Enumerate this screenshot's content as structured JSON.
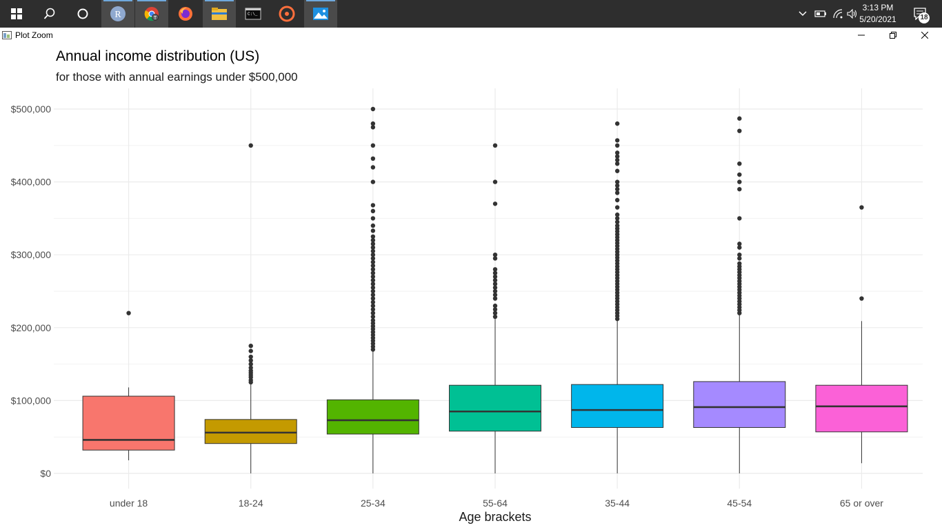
{
  "taskbar": {
    "icons": [
      "windows-start-icon",
      "search-icon",
      "cortana-icon",
      "r-app-icon",
      "chrome-icon",
      "firefox-icon",
      "file-explorer-icon",
      "terminal-icon",
      "media-player-icon",
      "photos-icon"
    ],
    "tray": {
      "time": "3:13 PM",
      "date": "5/20/2021",
      "notifications": "18"
    }
  },
  "window": {
    "title": "Plot Zoom"
  },
  "chart_data": {
    "type": "box",
    "title": "Annual income distribution (US)",
    "subtitle": "for those with annual earnings under $500,000",
    "xlabel": "Age brackets",
    "ylabel": "",
    "ylim": [
      -20000,
      530000
    ],
    "yticks": [
      0,
      100000,
      200000,
      300000,
      400000,
      500000
    ],
    "ytick_labels": [
      "$0",
      "$100,000",
      "$200,000",
      "$300,000",
      "$400,000",
      "$500,000"
    ],
    "grid": true,
    "colors": {
      "median": "#333333",
      "outlier": "#333333",
      "grid": "#ebebeb"
    },
    "categories": [
      "under 18",
      "18-24",
      "25-34",
      "55-64",
      "35-44",
      "45-54",
      "65 or over"
    ],
    "boxes": [
      {
        "name": "under 18",
        "color": "#F8766D",
        "whisker_low": 18000,
        "q1": 32000,
        "median": 46000,
        "q3": 106000,
        "whisker_high": 118000,
        "outliers": [
          220000
        ]
      },
      {
        "name": "18-24",
        "color": "#C49A00",
        "whisker_low": 0,
        "q1": 41000,
        "median": 56000,
        "q3": 74000,
        "whisker_high": 122000,
        "outliers": [
          125000,
          128000,
          132000,
          135000,
          138000,
          141000,
          145000,
          150000,
          155000,
          160000,
          168000,
          175000,
          450000
        ]
      },
      {
        "name": "25-34",
        "color": "#53B400",
        "whisker_low": 0,
        "q1": 54000,
        "median": 73000,
        "q3": 101000,
        "whisker_high": 168000,
        "outliers": [
          170000,
          174000,
          178000,
          182000,
          186000,
          190000,
          194000,
          198000,
          202000,
          206000,
          210000,
          215000,
          220000,
          225000,
          230000,
          235000,
          240000,
          245000,
          250000,
          255000,
          260000,
          265000,
          270000,
          275000,
          280000,
          285000,
          290000,
          295000,
          300000,
          305000,
          310000,
          315000,
          320000,
          325000,
          333000,
          340000,
          350000,
          360000,
          368000,
          400000,
          420000,
          432000,
          450000,
          475000,
          480000,
          500000
        ]
      },
      {
        "name": "55-64",
        "color": "#00C094",
        "whisker_low": 0,
        "q1": 58000,
        "median": 85000,
        "q3": 121000,
        "whisker_high": 212000,
        "outliers": [
          215000,
          220000,
          225000,
          230000,
          240000,
          245000,
          250000,
          255000,
          260000,
          265000,
          270000,
          275000,
          280000,
          295000,
          300000,
          370000,
          400000,
          450000
        ]
      },
      {
        "name": "35-44",
        "color": "#00B6EB",
        "whisker_low": 0,
        "q1": 63000,
        "median": 87000,
        "q3": 122000,
        "whisker_high": 210000,
        "outliers": [
          212000,
          216000,
          220000,
          224000,
          228000,
          232000,
          236000,
          240000,
          244000,
          248000,
          252000,
          256000,
          260000,
          264000,
          268000,
          272000,
          276000,
          280000,
          284000,
          288000,
          292000,
          296000,
          300000,
          304000,
          308000,
          312000,
          316000,
          320000,
          324000,
          328000,
          332000,
          336000,
          340000,
          345000,
          350000,
          355000,
          365000,
          375000,
          385000,
          390000,
          395000,
          400000,
          415000,
          425000,
          430000,
          435000,
          440000,
          450000,
          457000,
          480000
        ]
      },
      {
        "name": "45-54",
        "color": "#A58AFF",
        "whisker_low": 0,
        "q1": 63000,
        "median": 91000,
        "q3": 126000,
        "whisker_high": 218000,
        "outliers": [
          220000,
          224000,
          228000,
          232000,
          236000,
          240000,
          244000,
          248000,
          252000,
          256000,
          260000,
          264000,
          268000,
          272000,
          276000,
          280000,
          284000,
          288000,
          295000,
          300000,
          310000,
          315000,
          350000,
          390000,
          400000,
          410000,
          425000,
          470000,
          487000
        ]
      },
      {
        "name": "65 or over",
        "color": "#FB61D7",
        "whisker_low": 14000,
        "q1": 57000,
        "median": 92000,
        "q3": 121000,
        "whisker_high": 209000,
        "outliers": [
          240000,
          365000
        ]
      }
    ]
  }
}
